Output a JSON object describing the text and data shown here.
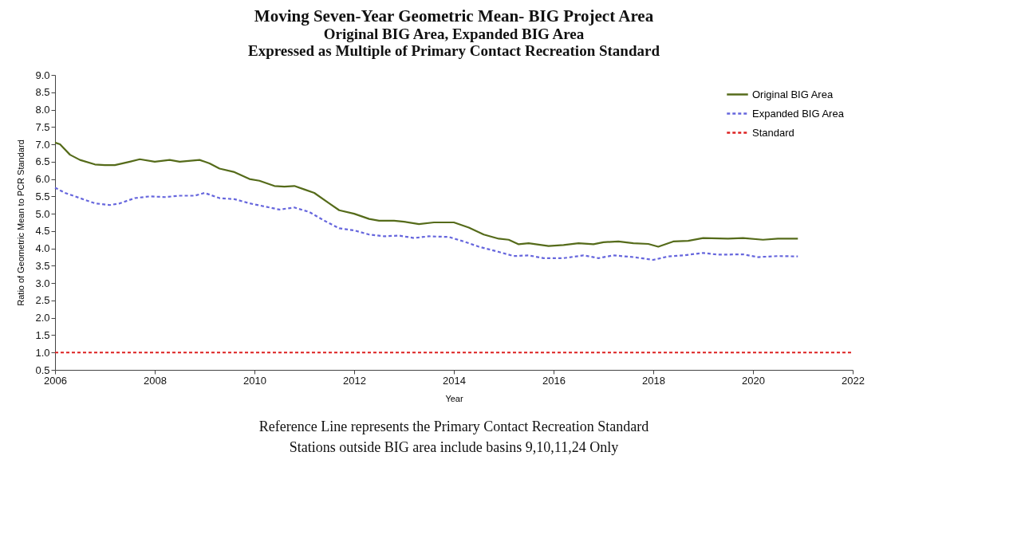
{
  "chart_data": {
    "type": "line",
    "title": "Moving Seven-Year Geometric Mean- BIG Project Area",
    "subtitle": "Original BIG Area, Expanded BIG Area\nExpressed as Multiple of Primary Contact Recreation Standard",
    "xlabel": "Year",
    "ylabel": "Ratio of Geometric Mean to PCR Standard",
    "annotations": [
      "Reference Line represents the Primary Contact Recreation Standard",
      "Stations outside BIG area include basins 9,10,11,24 Only"
    ],
    "xlim": [
      2006,
      2022
    ],
    "xticks": [
      2006,
      2008,
      2010,
      2012,
      2014,
      2016,
      2018,
      2020,
      2022
    ],
    "ylim": [
      0.5,
      9.0
    ],
    "yticks": [
      0.5,
      {
        "value": 1,
        "label": "1.0"
      },
      1.5,
      {
        "value": 2,
        "label": "2.0"
      },
      2.5,
      {
        "value": 3,
        "label": "3.0"
      },
      3.5,
      {
        "value": 4,
        "label": "4.0"
      },
      4.5,
      {
        "value": 5,
        "label": "5.0"
      },
      5.5,
      {
        "value": 6,
        "label": "6.0"
      },
      6.5,
      {
        "value": 7,
        "label": "7.0"
      },
      7.5,
      {
        "value": 8,
        "label": "8.0"
      },
      8.5,
      {
        "value": 9,
        "label": "9.0"
      }
    ],
    "grid": false,
    "legend": "top right",
    "marker": "none",
    "series": [
      {
        "name": "Original BIG Area",
        "color": "#556b1a",
        "line_style": "solid",
        "x": [
          2006.0,
          2006.1,
          2006.3,
          2006.5,
          2006.8,
          2007.0,
          2007.2,
          2007.5,
          2007.7,
          2008.0,
          2008.3,
          2008.5,
          2008.9,
          2009.1,
          2009.3,
          2009.6,
          2009.9,
          2010.1,
          2010.4,
          2010.6,
          2010.8,
          2011.0,
          2011.2,
          2011.5,
          2011.7,
          2012.0,
          2012.3,
          2012.5,
          2012.8,
          2013.0,
          2013.3,
          2013.6,
          2014.0,
          2014.3,
          2014.6,
          2014.9,
          2015.1,
          2015.3,
          2015.5,
          2015.9,
          2016.2,
          2016.5,
          2016.8,
          2017.0,
          2017.3,
          2017.6,
          2017.9,
          2018.1,
          2018.4,
          2018.7,
          2019.0,
          2019.5,
          2019.8,
          2020.2,
          2020.5,
          2020.9
        ],
        "values": [
          7.05,
          7.0,
          6.7,
          6.55,
          6.42,
          6.4,
          6.4,
          6.5,
          6.57,
          6.5,
          6.55,
          6.5,
          6.55,
          6.45,
          6.3,
          6.2,
          6.0,
          5.95,
          5.8,
          5.78,
          5.8,
          5.7,
          5.6,
          5.3,
          5.1,
          5.0,
          4.85,
          4.8,
          4.8,
          4.77,
          4.7,
          4.75,
          4.75,
          4.6,
          4.4,
          4.28,
          4.25,
          4.12,
          4.15,
          4.07,
          4.1,
          4.15,
          4.12,
          4.18,
          4.2,
          4.15,
          4.13,
          4.05,
          4.2,
          4.22,
          4.3,
          4.28,
          4.3,
          4.25,
          4.28,
          4.28
        ]
      },
      {
        "name": "Expanded BIG Area",
        "color": "#6666dd",
        "line_style": "dashed",
        "x": [
          2006.0,
          2006.2,
          2006.5,
          2006.8,
          2007.1,
          2007.3,
          2007.6,
          2007.9,
          2008.2,
          2008.5,
          2008.8,
          2009.0,
          2009.3,
          2009.6,
          2009.9,
          2010.3,
          2010.5,
          2010.8,
          2011.1,
          2011.4,
          2011.7,
          2012.0,
          2012.3,
          2012.6,
          2012.9,
          2013.2,
          2013.5,
          2013.9,
          2014.2,
          2014.5,
          2014.9,
          2015.2,
          2015.5,
          2015.8,
          2016.2,
          2016.6,
          2016.9,
          2017.2,
          2017.6,
          2018.0,
          2018.3,
          2018.6,
          2019.0,
          2019.3,
          2019.8,
          2020.1,
          2020.5,
          2020.9
        ],
        "values": [
          5.75,
          5.6,
          5.45,
          5.3,
          5.25,
          5.3,
          5.45,
          5.5,
          5.48,
          5.52,
          5.52,
          5.6,
          5.45,
          5.42,
          5.3,
          5.18,
          5.12,
          5.18,
          5.05,
          4.8,
          4.58,
          4.52,
          4.4,
          4.35,
          4.37,
          4.3,
          4.35,
          4.33,
          4.2,
          4.05,
          3.9,
          3.78,
          3.8,
          3.72,
          3.72,
          3.8,
          3.72,
          3.8,
          3.75,
          3.67,
          3.77,
          3.8,
          3.87,
          3.82,
          3.83,
          3.75,
          3.78,
          3.77
        ]
      },
      {
        "name": "Standard",
        "color": "#dd2222",
        "line_style": "dashed",
        "x": [
          2006,
          2022
        ],
        "values": [
          1.0,
          1.0
        ]
      }
    ]
  }
}
